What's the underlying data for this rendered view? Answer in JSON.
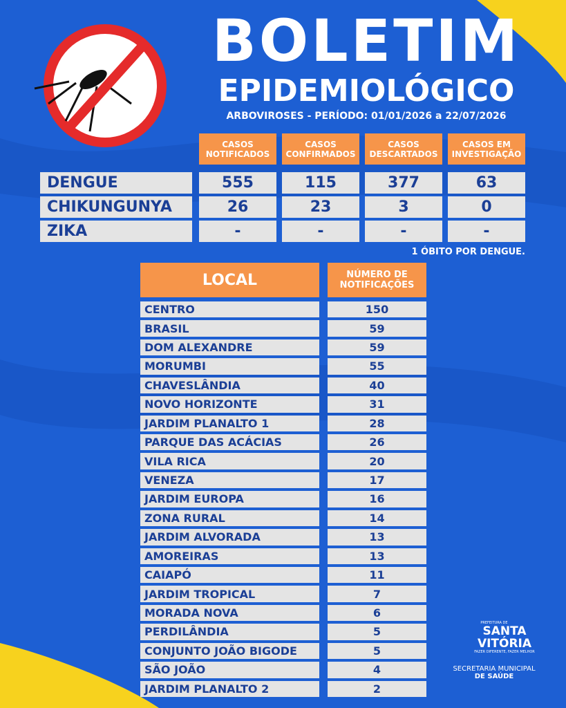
{
  "header": {
    "title": "BOLETIM",
    "subtitle": "EPIDEMIOLÓGICO",
    "period": "ARBOVIROSES - PERÍODO: 01/01/2026 a 22/07/2026"
  },
  "summary_table": {
    "columns": [
      "CASOS NOTIFICADOS",
      "CASOS CONFIRMADOS",
      "CASOS DESCARTADOS",
      "CASOS EM INVESTIGAÇÃO"
    ],
    "rows": [
      {
        "name": "DENGUE",
        "values": [
          555,
          115,
          377,
          63
        ]
      },
      {
        "name": "CHIKUNGUNYA",
        "values": [
          26,
          23,
          3,
          0
        ]
      },
      {
        "name": "ZIKA",
        "values": [
          "-",
          "-",
          "-",
          "-"
        ]
      }
    ]
  },
  "note": "1 ÓBITO POR DENGUE.",
  "local_table": {
    "headers": [
      "LOCAL",
      "NÚMERO DE NOTIFICAÇÕES"
    ],
    "rows": [
      [
        "CENTRO",
        150
      ],
      [
        "BRASIL",
        59
      ],
      [
        "DOM ALEXANDRE",
        59
      ],
      [
        "MORUMBI",
        55
      ],
      [
        "CHAVESLÂNDIA",
        40
      ],
      [
        "NOVO HORIZONTE",
        31
      ],
      [
        "JARDIM PLANALTO 1",
        28
      ],
      [
        "PARQUE DAS ACÁCIAS",
        26
      ],
      [
        "VILA RICA",
        20
      ],
      [
        "VENEZA",
        17
      ],
      [
        "JARDIM EUROPA",
        16
      ],
      [
        "ZONA RURAL",
        14
      ],
      [
        "JARDIM ALVORADA",
        13
      ],
      [
        "AMOREIRAS",
        13
      ],
      [
        "CAIAPÓ",
        11
      ],
      [
        "JARDIM TROPICAL",
        7
      ],
      [
        "MORADA NOVA",
        6
      ],
      [
        "PERDILÂNDIA",
        5
      ],
      [
        "CONJUNTO JOÃO BIGODE",
        5
      ],
      [
        "SÃO JOÃO",
        4
      ],
      [
        "JARDIM PLANALTO 2",
        2
      ]
    ]
  },
  "footer": {
    "prefeitura": "PREFEITURA DE",
    "city": "SANTA VITÓRIA",
    "slogan": "FAZER DIFERENTE, FAZER MELHOR",
    "department_line1": "SECRETARIA MUNICIPAL",
    "department_line2": "DE SAÚDE"
  }
}
